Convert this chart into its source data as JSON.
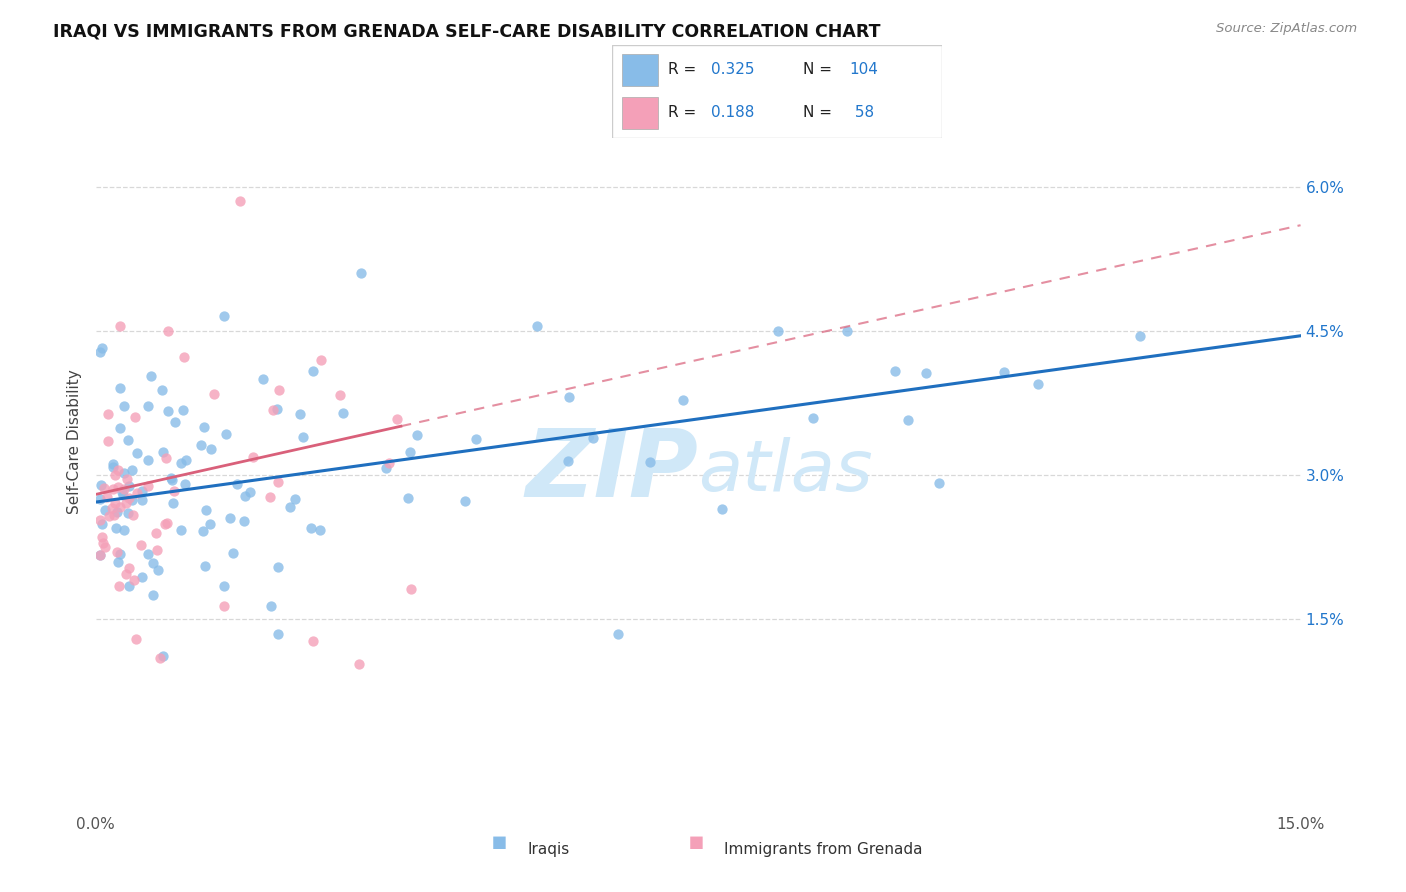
{
  "title": "IRAQI VS IMMIGRANTS FROM GRENADA SELF-CARE DISABILITY CORRELATION CHART",
  "source": "Source: ZipAtlas.com",
  "ylabel": "Self-Care Disability",
  "ytick_values": [
    1.5,
    3.0,
    4.5,
    6.0
  ],
  "xlim": [
    0.0,
    15.0
  ],
  "ylim": [
    -0.5,
    7.2
  ],
  "color_iraqis": "#88bce8",
  "color_grenada": "#f4a0b8",
  "color_iraqis_line": "#1f6fbf",
  "color_grenada_line": "#d9607a",
  "color_grenada_dash": "#d9607a",
  "watermark_zip": "ZIP",
  "watermark_atlas": "atlas",
  "watermark_color": "#d0e8f8",
  "legend_color": "#2277cc",
  "grid_color": "#d8d8d8",
  "iraqis_line_start_y": 2.72,
  "iraqis_line_end_y": 4.45,
  "grenada_line_start_y": 2.8,
  "grenada_line_end_y": 3.35,
  "grenada_dash_end_y": 5.6
}
